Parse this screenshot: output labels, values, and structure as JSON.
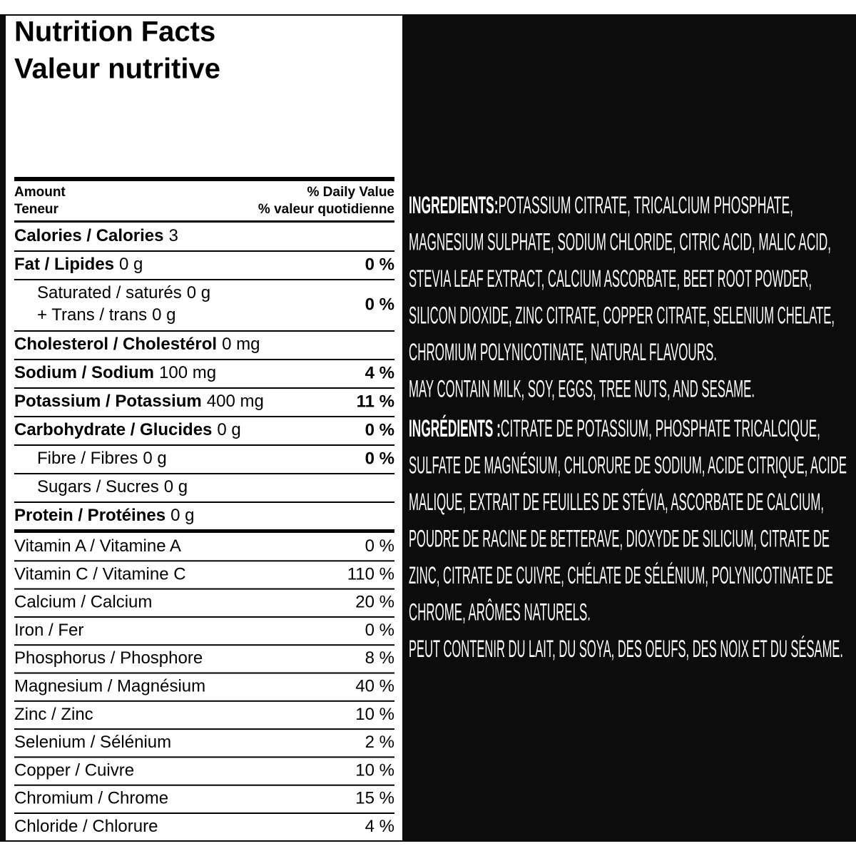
{
  "header": {
    "title": [
      "Nutrition Facts",
      "Valeur nutritive"
    ]
  },
  "columns": {
    "amount": [
      "Amount",
      "Teneur"
    ],
    "daily_value": [
      "% Daily Value",
      "% valeur quotidienne"
    ]
  },
  "nutrients": [
    {
      "label": "Calories / Calories",
      "amount": "3"
    },
    {
      "label": "Fat / Lipides",
      "amount": "0 g",
      "dv": "0 %"
    },
    {
      "label": "Saturated / saturés",
      "amount": "0 g",
      "sub": {
        "label": "+ Trans / trans",
        "amount": "0 g"
      },
      "dv": "0 %"
    },
    {
      "label": "Cholesterol / Cholestérol",
      "amount": "0 mg"
    },
    {
      "label": "Sodium / Sodium",
      "amount": "100 mg",
      "dv": "4 %"
    },
    {
      "label": "Potassium / Potassium",
      "amount": "400 mg",
      "dv": "11 %"
    },
    {
      "label": "Carbohydrate / Glucides",
      "amount": "0 g",
      "dv": "0 %"
    },
    {
      "label": "Fibre / Fibres",
      "amount": "0 g",
      "dv": "0 %"
    },
    {
      "label": "Sugars / Sucres",
      "amount": "0 g"
    },
    {
      "label": "Protein / Protéines",
      "amount": "0 g"
    }
  ],
  "vitamins": [
    {
      "label": "Vitamin A / Vitamine A",
      "dv": "0 %"
    },
    {
      "label": "Vitamin C / Vitamine C",
      "dv": "110 %"
    },
    {
      "label": "Calcium / Calcium",
      "dv": "20 %"
    },
    {
      "label": "Iron / Fer",
      "dv": "0 %"
    },
    {
      "label": "Phosphorus / Phosphore",
      "dv": "8 %"
    },
    {
      "label": "Magnesium / Magnésium",
      "dv": "40 %"
    },
    {
      "label": "Zinc / Zinc",
      "dv": "10 %"
    },
    {
      "label": "Selenium / Sélénium",
      "dv": "2 %"
    },
    {
      "label": "Copper / Cuivre",
      "dv": "10 %"
    },
    {
      "label": "Chromium / Chrome",
      "dv": "15 %"
    },
    {
      "label": "Chloride / Chlorure",
      "dv": "4 %"
    }
  ],
  "ingredients": [
    {
      "heading": "INGREDIENTS:",
      "lines": [
        "POTASSIUM CITRATE, TRICALCIUM PHOSPHATE,",
        "MAGNESIUM  SULPHATE, SODIUM CHLORIDE, CITRIC ACID, MALIC ACID,",
        "STEVIA LEAF EXTRACT, CALCIUM ASCORBATE, BEET ROOT POWDER,",
        "SILICON DIOXIDE, ZINC CITRATE, COPPER CITRATE, SELENIUM CHELATE,",
        "CHROMIUM POLYNICOTINATE, NATURAL FLAVOURS.",
        "MAY CONTAIN MILK, SOY, EGGS, TREE NUTS, AND SESAME."
      ]
    },
    {
      "heading": "INGRÉDIENTS :",
      "lines": [
        "CITRATE DE POTASSIUM, PHOSPHATE TRICALCIQUE,",
        "SULFATE DE MAGNÉSIUM, CHLORURE DE SODIUM, ACIDE CITRIQUE, ACIDE",
        "MALIQUE, EXTRAIT DE FEUILLES DE STÉVIA, ASCORBATE DE CALCIUM,",
        "POUDRE DE RACINE DE BETTERAVE, DIOXYDE DE SILICIUM, CITRATE DE",
        "ZINC, CITRATE DE CUIVRE, CHÉLATE DE SÉLÉNIUM, POLYNICOTINATE DE",
        "CHROME, ARÔMES NATURELS.",
        "PEUT CONTENIR DU LAIT, DU SOYA, DES OEUFS, DES NOIX ET DU SÉSAME."
      ]
    }
  ]
}
